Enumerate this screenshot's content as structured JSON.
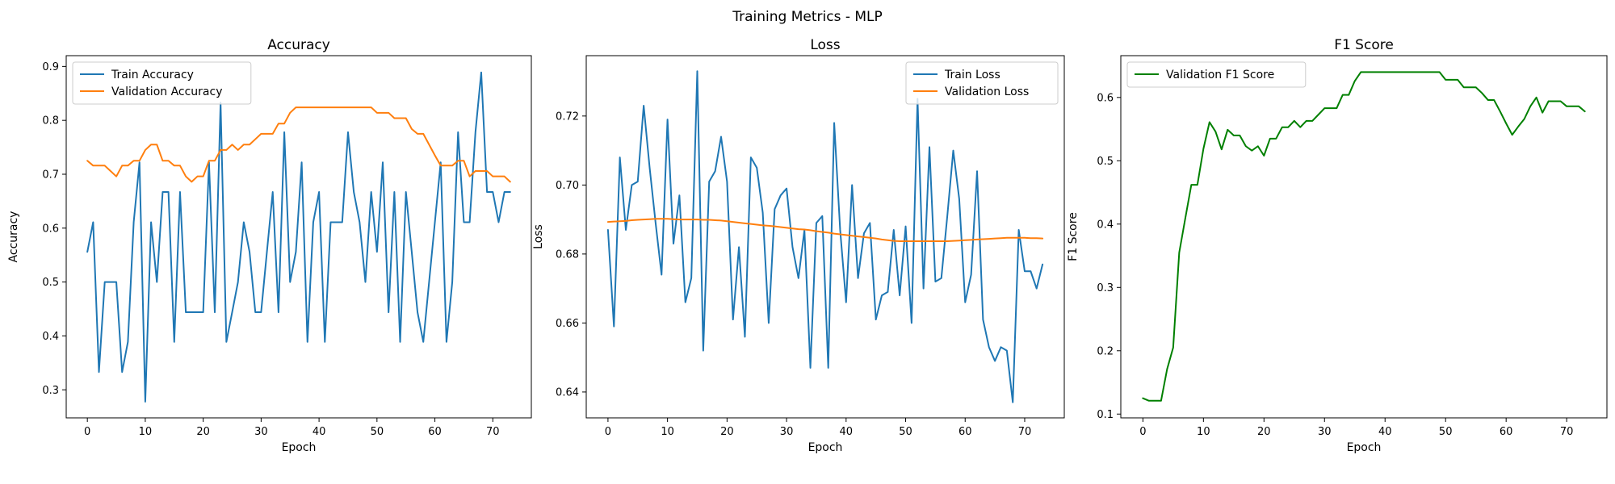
{
  "figure": {
    "suptitle": "Training Metrics - MLP"
  },
  "colors": {
    "blue": "#1f77b4",
    "orange": "#ff7f0e",
    "green": "#008000"
  },
  "chart_data": [
    {
      "type": "line",
      "title": "Accuracy",
      "xlabel": "Epoch",
      "ylabel": "Accuracy",
      "xlim": [
        -3.65,
        76.65
      ],
      "ylim": [
        0.248,
        0.92
      ],
      "xticks": [
        0,
        10,
        20,
        30,
        40,
        50,
        60,
        70
      ],
      "yticks": [
        0.3,
        0.4,
        0.5,
        0.6,
        0.7,
        0.8,
        0.9
      ],
      "legend": "top-left",
      "series": [
        {
          "name": "Train Accuracy",
          "color": "#1f77b4",
          "x": [
            0,
            1,
            2,
            3,
            4,
            5,
            6,
            7,
            8,
            9,
            10,
            11,
            12,
            13,
            14,
            15,
            16,
            17,
            18,
            19,
            20,
            21,
            22,
            23,
            24,
            25,
            26,
            27,
            28,
            29,
            30,
            31,
            32,
            33,
            34,
            35,
            36,
            37,
            38,
            39,
            40,
            41,
            42,
            43,
            44,
            45,
            46,
            47,
            48,
            49,
            50,
            51,
            52,
            53,
            54,
            55,
            56,
            57,
            58,
            59,
            60,
            61,
            62,
            63,
            64,
            65,
            66,
            67,
            68,
            69,
            70,
            71,
            72,
            73
          ],
          "y": [
            0.556,
            0.611,
            0.333,
            0.5,
            0.5,
            0.5,
            0.333,
            0.389,
            0.611,
            0.722,
            0.278,
            0.611,
            0.5,
            0.667,
            0.667,
            0.389,
            0.667,
            0.444,
            0.444,
            0.444,
            0.444,
            0.722,
            0.444,
            0.833,
            0.389,
            0.444,
            0.5,
            0.611,
            0.556,
            0.444,
            0.444,
            0.556,
            0.667,
            0.444,
            0.778,
            0.5,
            0.556,
            0.722,
            0.389,
            0.611,
            0.667,
            0.389,
            0.611,
            0.611,
            0.611,
            0.778,
            0.667,
            0.611,
            0.5,
            0.667,
            0.556,
            0.722,
            0.444,
            0.667,
            0.389,
            0.667,
            0.556,
            0.444,
            0.389,
            0.5,
            0.611,
            0.722,
            0.389,
            0.5,
            0.778,
            0.611,
            0.611,
            0.778,
            0.889,
            0.667,
            0.667,
            0.611,
            0.667,
            0.667
          ]
        },
        {
          "name": "Validation Accuracy",
          "color": "#ff7f0e",
          "x": [
            0,
            1,
            2,
            3,
            4,
            5,
            6,
            7,
            8,
            9,
            10,
            11,
            12,
            13,
            14,
            15,
            16,
            17,
            18,
            19,
            20,
            21,
            22,
            23,
            24,
            25,
            26,
            27,
            28,
            29,
            30,
            31,
            32,
            33,
            34,
            35,
            36,
            37,
            38,
            39,
            40,
            41,
            42,
            43,
            44,
            45,
            46,
            47,
            48,
            49,
            50,
            51,
            52,
            53,
            54,
            55,
            56,
            57,
            58,
            59,
            60,
            61,
            62,
            63,
            64,
            65,
            66,
            67,
            68,
            69,
            70,
            71,
            72,
            73
          ],
          "y": [
            0.725,
            0.716,
            0.716,
            0.716,
            0.706,
            0.696,
            0.716,
            0.716,
            0.725,
            0.725,
            0.745,
            0.755,
            0.755,
            0.725,
            0.725,
            0.716,
            0.716,
            0.696,
            0.686,
            0.696,
            0.696,
            0.725,
            0.725,
            0.745,
            0.745,
            0.755,
            0.745,
            0.755,
            0.755,
            0.765,
            0.775,
            0.775,
            0.775,
            0.794,
            0.794,
            0.814,
            0.824,
            0.824,
            0.824,
            0.824,
            0.824,
            0.824,
            0.824,
            0.824,
            0.824,
            0.824,
            0.824,
            0.824,
            0.824,
            0.824,
            0.814,
            0.814,
            0.814,
            0.804,
            0.804,
            0.804,
            0.784,
            0.775,
            0.775,
            0.755,
            0.735,
            0.716,
            0.716,
            0.716,
            0.725,
            0.725,
            0.696,
            0.706,
            0.706,
            0.706,
            0.696,
            0.696,
            0.696,
            0.686
          ]
        }
      ]
    },
    {
      "type": "line",
      "title": "Loss",
      "xlabel": "Epoch",
      "ylabel": "Loss",
      "xlim": [
        -3.65,
        76.65
      ],
      "ylim": [
        0.6325,
        0.7375
      ],
      "xticks": [
        0,
        10,
        20,
        30,
        40,
        50,
        60,
        70
      ],
      "yticks": [
        0.64,
        0.66,
        0.68,
        0.7,
        0.72
      ],
      "legend": "top-right",
      "series": [
        {
          "name": "Train Loss",
          "color": "#1f77b4",
          "x": [
            0,
            1,
            2,
            3,
            4,
            5,
            6,
            7,
            8,
            9,
            10,
            11,
            12,
            13,
            14,
            15,
            16,
            17,
            18,
            19,
            20,
            21,
            22,
            23,
            24,
            25,
            26,
            27,
            28,
            29,
            30,
            31,
            32,
            33,
            34,
            35,
            36,
            37,
            38,
            39,
            40,
            41,
            42,
            43,
            44,
            45,
            46,
            47,
            48,
            49,
            50,
            51,
            52,
            53,
            54,
            55,
            56,
            57,
            58,
            59,
            60,
            61,
            62,
            63,
            64,
            65,
            66,
            67,
            68,
            69,
            70,
            71,
            72,
            73
          ],
          "y": [
            0.687,
            0.659,
            0.708,
            0.687,
            0.7,
            0.701,
            0.723,
            0.705,
            0.689,
            0.674,
            0.719,
            0.683,
            0.697,
            0.666,
            0.673,
            0.733,
            0.652,
            0.701,
            0.704,
            0.714,
            0.701,
            0.661,
            0.682,
            0.656,
            0.708,
            0.705,
            0.692,
            0.66,
            0.693,
            0.697,
            0.699,
            0.682,
            0.673,
            0.687,
            0.647,
            0.689,
            0.691,
            0.647,
            0.718,
            0.687,
            0.666,
            0.7,
            0.673,
            0.686,
            0.689,
            0.661,
            0.668,
            0.669,
            0.687,
            0.668,
            0.688,
            0.66,
            0.725,
            0.67,
            0.711,
            0.672,
            0.673,
            0.691,
            0.71,
            0.696,
            0.666,
            0.674,
            0.704,
            0.661,
            0.653,
            0.649,
            0.653,
            0.652,
            0.637,
            0.687,
            0.675,
            0.675,
            0.67,
            0.677
          ]
        },
        {
          "name": "Validation Loss",
          "color": "#ff7f0e",
          "x": [
            0,
            1,
            2,
            3,
            4,
            5,
            6,
            7,
            8,
            9,
            10,
            11,
            12,
            13,
            14,
            15,
            16,
            17,
            18,
            19,
            20,
            21,
            22,
            23,
            24,
            25,
            26,
            27,
            28,
            29,
            30,
            31,
            32,
            33,
            34,
            35,
            36,
            37,
            38,
            39,
            40,
            41,
            42,
            43,
            44,
            45,
            46,
            47,
            48,
            49,
            50,
            51,
            52,
            53,
            54,
            55,
            56,
            57,
            58,
            59,
            60,
            61,
            62,
            63,
            64,
            65,
            66,
            67,
            68,
            69,
            70,
            71,
            72,
            73
          ],
          "y": [
            0.6893,
            0.6894,
            0.6895,
            0.6896,
            0.6898,
            0.6899,
            0.69,
            0.6901,
            0.6902,
            0.6902,
            0.6902,
            0.6901,
            0.69,
            0.69,
            0.69,
            0.69,
            0.6899,
            0.6899,
            0.6898,
            0.6897,
            0.6895,
            0.6893,
            0.6891,
            0.6889,
            0.6887,
            0.6885,
            0.6883,
            0.6882,
            0.688,
            0.6878,
            0.6876,
            0.6874,
            0.6872,
            0.6871,
            0.6869,
            0.6866,
            0.6864,
            0.6862,
            0.6859,
            0.6857,
            0.6855,
            0.6853,
            0.6851,
            0.6849,
            0.6847,
            0.6845,
            0.6842,
            0.684,
            0.6838,
            0.6837,
            0.6837,
            0.6837,
            0.6837,
            0.6837,
            0.6837,
            0.6837,
            0.6837,
            0.6837,
            0.6838,
            0.6839,
            0.684,
            0.6841,
            0.6842,
            0.6843,
            0.6844,
            0.6845,
            0.6846,
            0.6847,
            0.6847,
            0.6847,
            0.6847,
            0.6846,
            0.6846,
            0.6845
          ]
        }
      ]
    },
    {
      "type": "line",
      "title": "F1 Score",
      "xlabel": "Epoch",
      "ylabel": "F1 Score",
      "xlim": [
        -3.65,
        76.65
      ],
      "ylim": [
        0.094,
        0.666
      ],
      "xticks": [
        0,
        10,
        20,
        30,
        40,
        50,
        60,
        70
      ],
      "yticks": [
        0.1,
        0.2,
        0.3,
        0.4,
        0.5,
        0.6
      ],
      "legend": "top-left",
      "series": [
        {
          "name": "Validation F1 Score",
          "color": "#008000",
          "x": [
            0,
            1,
            2,
            3,
            4,
            5,
            6,
            7,
            8,
            9,
            10,
            11,
            12,
            13,
            14,
            15,
            16,
            17,
            18,
            19,
            20,
            21,
            22,
            23,
            24,
            25,
            26,
            27,
            28,
            29,
            30,
            31,
            32,
            33,
            34,
            35,
            36,
            37,
            38,
            39,
            40,
            41,
            42,
            43,
            44,
            45,
            46,
            47,
            48,
            49,
            50,
            51,
            52,
            53,
            54,
            55,
            56,
            57,
            58,
            59,
            60,
            61,
            62,
            63,
            64,
            65,
            66,
            67,
            68,
            69,
            70,
            71,
            72,
            73
          ],
          "y": [
            0.125,
            0.121,
            0.121,
            0.121,
            0.171,
            0.205,
            0.355,
            0.409,
            0.462,
            0.462,
            0.519,
            0.561,
            0.546,
            0.518,
            0.549,
            0.54,
            0.54,
            0.523,
            0.516,
            0.523,
            0.508,
            0.535,
            0.535,
            0.553,
            0.553,
            0.563,
            0.553,
            0.563,
            0.563,
            0.573,
            0.583,
            0.583,
            0.583,
            0.604,
            0.604,
            0.626,
            0.64,
            0.64,
            0.64,
            0.64,
            0.64,
            0.64,
            0.64,
            0.64,
            0.64,
            0.64,
            0.64,
            0.64,
            0.64,
            0.64,
            0.628,
            0.628,
            0.628,
            0.616,
            0.616,
            0.616,
            0.607,
            0.596,
            0.596,
            0.578,
            0.559,
            0.541,
            0.554,
            0.566,
            0.586,
            0.6,
            0.576,
            0.594,
            0.594,
            0.594,
            0.586,
            0.586,
            0.586,
            0.578
          ]
        }
      ]
    }
  ]
}
